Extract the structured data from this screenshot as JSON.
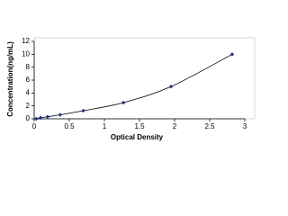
{
  "chart_data": {
    "type": "scatter",
    "x_label": "Optical Density",
    "y_label": "Concentration(ng/mL)",
    "series": [
      {
        "color": "#1f2f8f",
        "x": [
          0.03,
          0.09,
          0.19,
          0.37,
          0.7,
          1.27,
          1.95,
          2.82
        ],
        "values": [
          0,
          0.156,
          0.312,
          0.625,
          1.25,
          2.5,
          5,
          10
        ]
      }
    ],
    "fit_line": true,
    "line_color": "#000000",
    "xlim": [
      0,
      3
    ],
    "xticks": [
      0,
      0.5,
      1,
      1.5,
      2,
      2.5,
      3
    ],
    "ylim": [
      0,
      12
    ],
    "yticks": [
      0,
      2,
      4,
      6,
      8,
      10,
      12
    ]
  }
}
